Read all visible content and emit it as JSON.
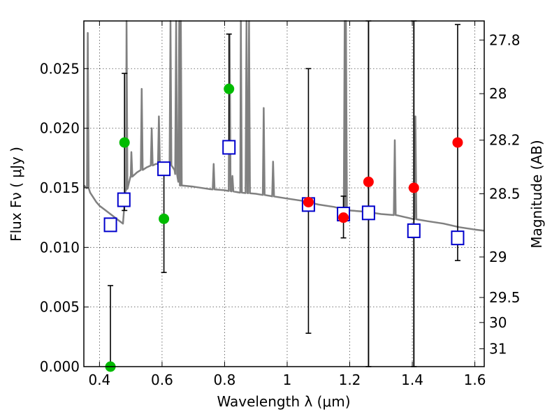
{
  "chart_data": {
    "type": "scatter",
    "xlabel": "Wavelength  λ (μm)",
    "ylabel": "Flux  Fν  ( μJy )",
    "ylabel_right": "Magnitude (AB)",
    "xlim": [
      0.35,
      1.63
    ],
    "ylim": [
      0.0,
      0.029
    ],
    "grid": true,
    "x_ticks": [
      {
        "value": 0.4,
        "label": "0.4"
      },
      {
        "value": 0.6,
        "label": "0.6"
      },
      {
        "value": 0.8,
        "label": "0.8"
      },
      {
        "value": 1.0,
        "label": "1"
      },
      {
        "value": 1.2,
        "label": "1.2"
      },
      {
        "value": 1.4,
        "label": "1.4"
      },
      {
        "value": 1.6,
        "label": "1.6"
      }
    ],
    "y_ticks": [
      {
        "value": 0.0,
        "label": "0.000"
      },
      {
        "value": 0.005,
        "label": "0.005"
      },
      {
        "value": 0.01,
        "label": "0.010"
      },
      {
        "value": 0.015,
        "label": "0.015"
      },
      {
        "value": 0.02,
        "label": "0.020"
      },
      {
        "value": 0.025,
        "label": "0.025"
      }
    ],
    "right_ticks": [
      {
        "flux": 0.0274,
        "label": "27.8"
      },
      {
        "flux": 0.0229,
        "label": "28"
      },
      {
        "flux": 0.019,
        "label": "28.2"
      },
      {
        "flux": 0.0145,
        "label": "28.5"
      },
      {
        "flux": 0.0092,
        "label": "29"
      },
      {
        "flux": 0.0058,
        "label": "29.5"
      },
      {
        "flux": 0.0037,
        "label": "30"
      },
      {
        "flux": 0.0015,
        "label": "31"
      }
    ],
    "observations": [
      {
        "x": 0.435,
        "y": 0.0,
        "err_low": 0.0,
        "err_high": 0.0068,
        "color": "#00bb00"
      },
      {
        "x": 0.48,
        "y": 0.0188,
        "err_low": 0.0131,
        "err_high": 0.0246,
        "color": "#00bb00"
      },
      {
        "x": 0.606,
        "y": 0.0124,
        "err_low": 0.0079,
        "err_high": 0.0168,
        "color": "#00bb00"
      },
      {
        "x": 0.814,
        "y": 0.0233,
        "err_low": 0.0188,
        "err_high": 0.0279,
        "color": "#00bb00"
      },
      {
        "x": 1.068,
        "y": 0.0138,
        "err_low": 0.0028,
        "err_high": 0.025,
        "color": "#ff0000"
      },
      {
        "x": 1.18,
        "y": 0.0125,
        "err_low": 0.0108,
        "err_high": 0.0143,
        "color": "#ff0000"
      },
      {
        "x": 1.26,
        "y": 0.0155,
        "err_low": 0.0,
        "err_high": 0.029,
        "color": "#ff0000"
      },
      {
        "x": 1.405,
        "y": 0.015,
        "err_low": 0.0,
        "err_high": 0.029,
        "color": "#ff0000"
      },
      {
        "x": 1.545,
        "y": 0.0188,
        "err_low": 0.0089,
        "err_high": 0.0287,
        "color": "#ff0000"
      }
    ],
    "model_photometry": [
      {
        "x": 0.435,
        "y": 0.0119
      },
      {
        "x": 0.478,
        "y": 0.014
      },
      {
        "x": 0.606,
        "y": 0.0166
      },
      {
        "x": 0.814,
        "y": 0.0184
      },
      {
        "x": 1.068,
        "y": 0.0136
      },
      {
        "x": 1.18,
        "y": 0.0128
      },
      {
        "x": 1.26,
        "y": 0.0129
      },
      {
        "x": 1.405,
        "y": 0.0114
      },
      {
        "x": 1.545,
        "y": 0.0108
      }
    ],
    "spectrum_continuum": [
      [
        0.35,
        0.0152
      ],
      [
        0.36,
        0.0151
      ],
      [
        0.37,
        0.0146
      ],
      [
        0.38,
        0.0142
      ],
      [
        0.39,
        0.0138
      ],
      [
        0.4,
        0.0135
      ],
      [
        0.42,
        0.0131
      ],
      [
        0.44,
        0.0127
      ],
      [
        0.46,
        0.0123
      ],
      [
        0.47,
        0.0121
      ],
      [
        0.475,
        0.012
      ],
      [
        0.485,
        0.0148
      ],
      [
        0.5,
        0.0159
      ],
      [
        0.52,
        0.0163
      ],
      [
        0.55,
        0.0167
      ],
      [
        0.58,
        0.017
      ],
      [
        0.6,
        0.017
      ],
      [
        0.62,
        0.0171
      ],
      [
        0.64,
        0.0165
      ],
      [
        0.65,
        0.0158
      ],
      [
        0.66,
        0.0152
      ],
      [
        0.7,
        0.0151
      ],
      [
        0.75,
        0.0149
      ],
      [
        0.8,
        0.0148
      ],
      [
        0.85,
        0.0146
      ],
      [
        0.9,
        0.0145
      ],
      [
        0.95,
        0.0143
      ],
      [
        1.0,
        0.0141
      ],
      [
        1.05,
        0.0139
      ],
      [
        1.1,
        0.0136
      ],
      [
        1.15,
        0.0134
      ],
      [
        1.2,
        0.0131
      ],
      [
        1.25,
        0.013
      ],
      [
        1.3,
        0.0128
      ],
      [
        1.35,
        0.0127
      ],
      [
        1.4,
        0.0124
      ],
      [
        1.45,
        0.0122
      ],
      [
        1.5,
        0.012
      ],
      [
        1.55,
        0.0117
      ],
      [
        1.6,
        0.0115
      ],
      [
        1.63,
        0.0114
      ]
    ],
    "spectrum_emission_lines": [
      {
        "x": 0.3625,
        "peak": 0.028
      },
      {
        "x": 0.4865,
        "peak": 0.029
      },
      {
        "x": 0.502,
        "peak": 0.018
      },
      {
        "x": 0.535,
        "peak": 0.0233
      },
      {
        "x": 0.567,
        "peak": 0.02
      },
      {
        "x": 0.59,
        "peak": 0.021
      },
      {
        "x": 0.627,
        "peak": 0.029
      },
      {
        "x": 0.645,
        "peak": 0.029
      },
      {
        "x": 0.655,
        "peak": 0.029
      },
      {
        "x": 0.66,
        "peak": 0.029
      },
      {
        "x": 0.765,
        "peak": 0.017
      },
      {
        "x": 0.816,
        "peak": 0.0278
      },
      {
        "x": 0.825,
        "peak": 0.016
      },
      {
        "x": 0.852,
        "peak": 0.029
      },
      {
        "x": 0.87,
        "peak": 0.029
      },
      {
        "x": 0.878,
        "peak": 0.029
      },
      {
        "x": 0.925,
        "peak": 0.0217
      },
      {
        "x": 0.955,
        "peak": 0.0172
      },
      {
        "x": 1.184,
        "peak": 0.029
      },
      {
        "x": 1.188,
        "peak": 0.029
      },
      {
        "x": 1.344,
        "peak": 0.019
      },
      {
        "x": 1.41,
        "peak": 0.021
      }
    ],
    "vertical_lines": [
      1.26,
      1.405
    ]
  }
}
